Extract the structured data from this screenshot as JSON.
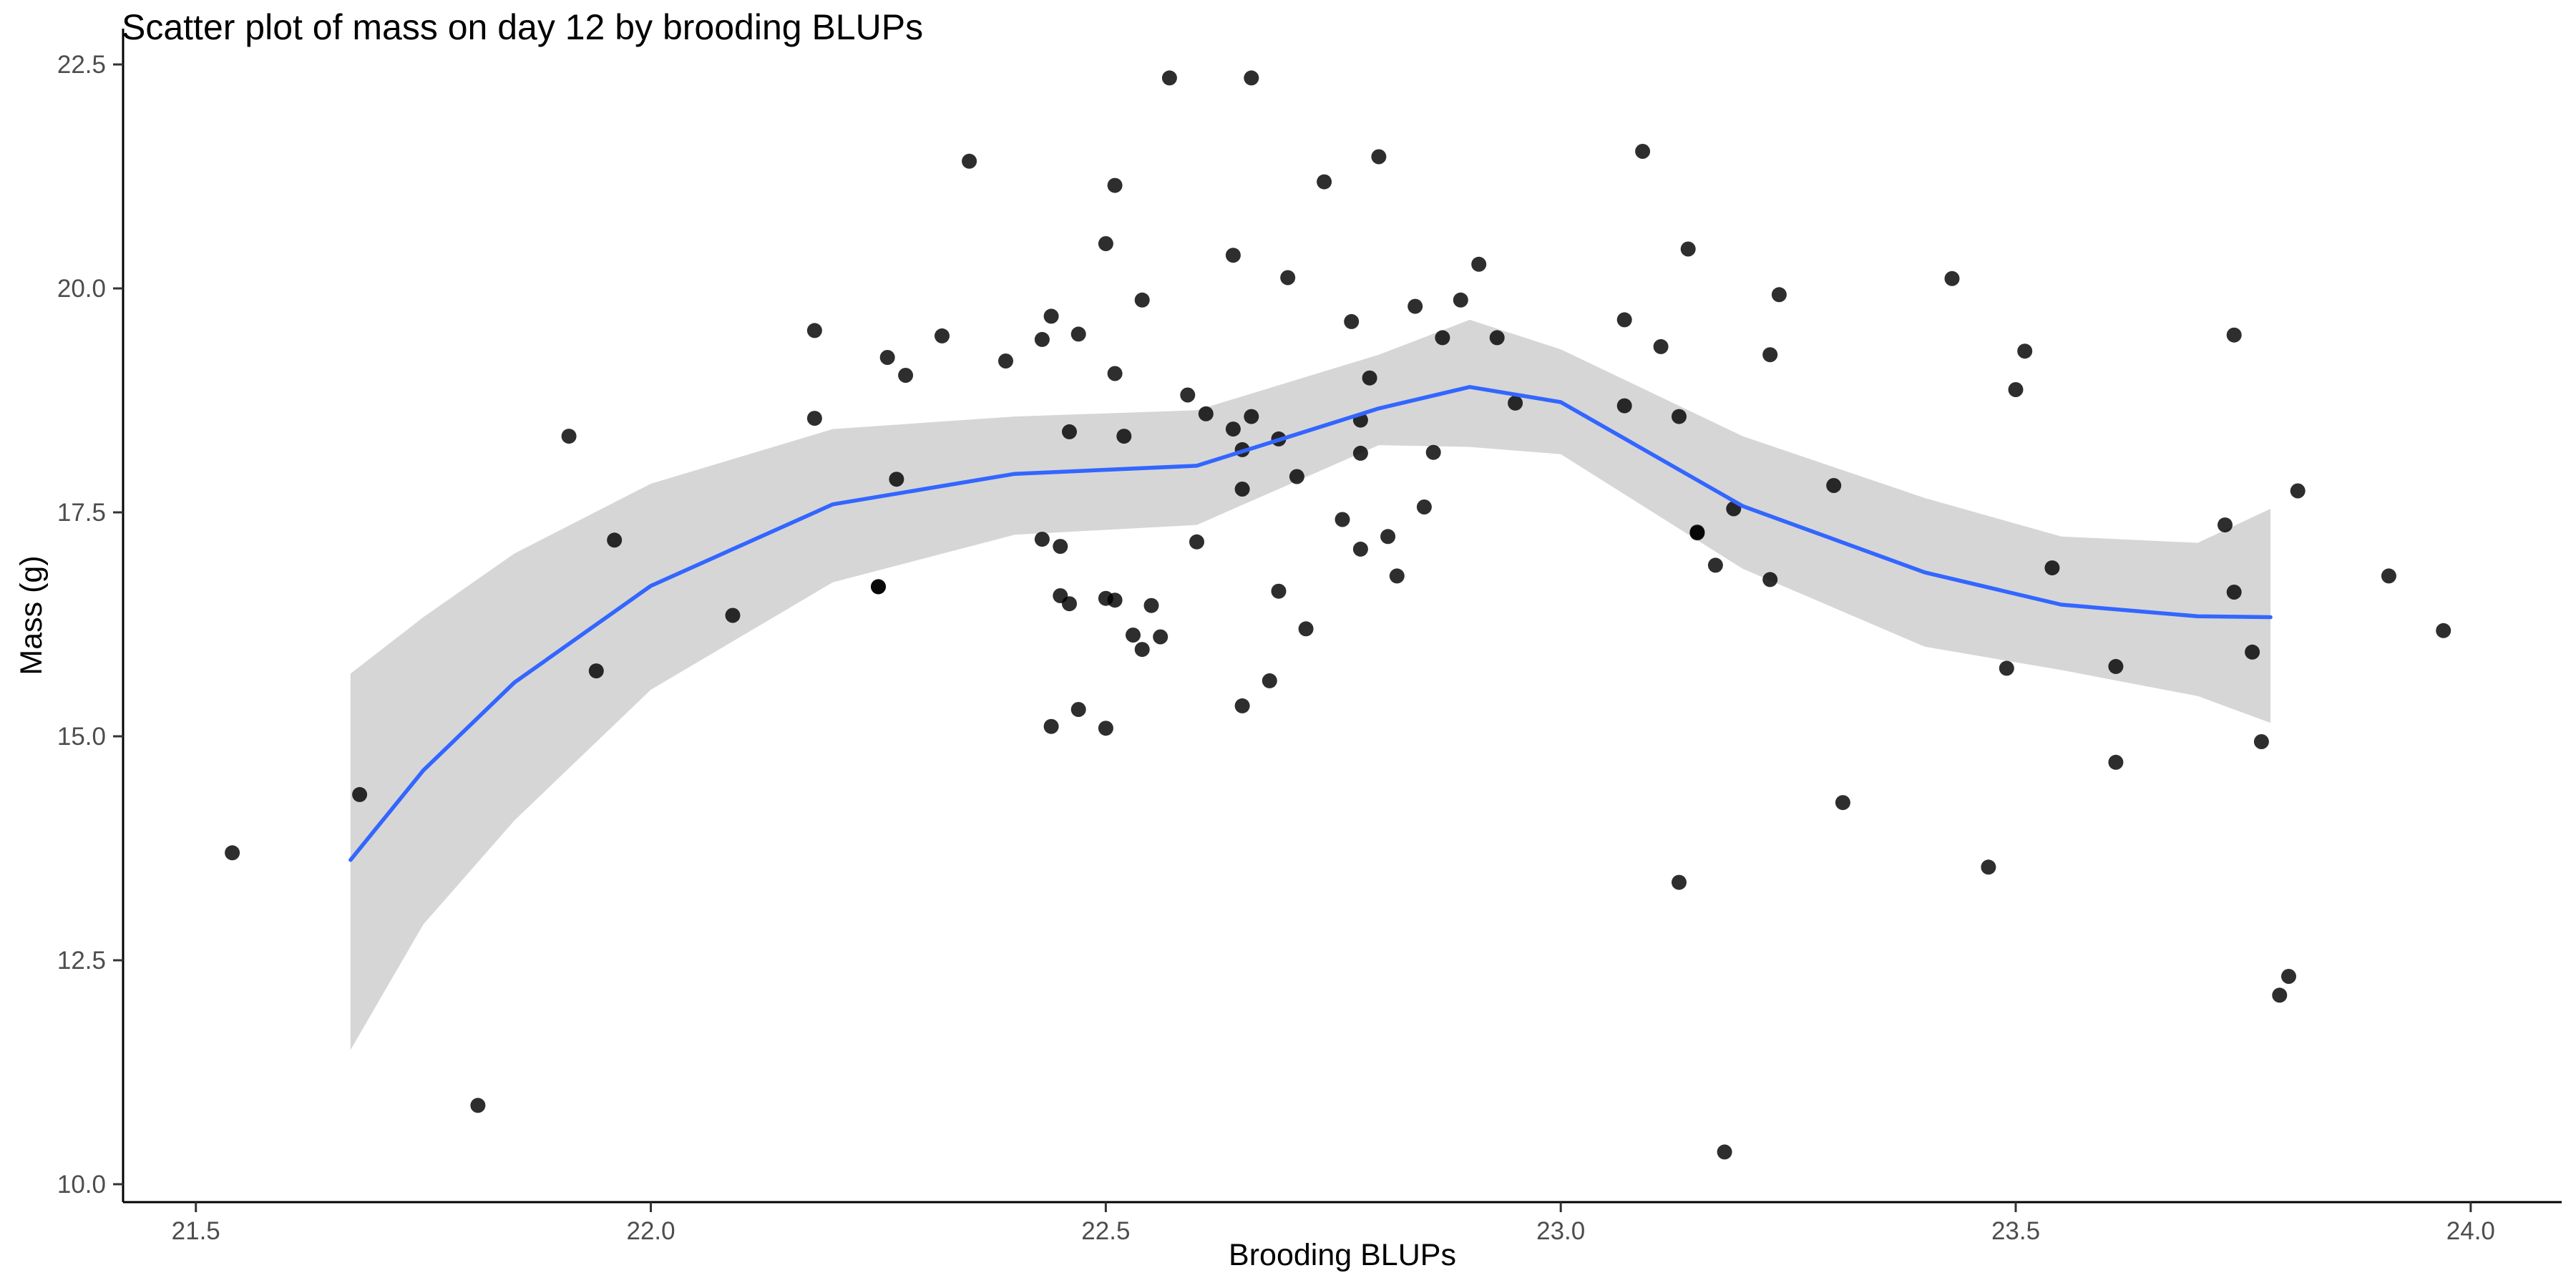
{
  "chart_data": {
    "type": "scatter",
    "title": "Scatter plot of mass on day 12 by brooding BLUPs",
    "xlabel": "Brooding BLUPs",
    "ylabel": "Mass (g)",
    "xlim": [
      21.42,
      24.1
    ],
    "ylim": [
      9.8,
      22.9
    ],
    "x_ticks": [
      21.5,
      22.0,
      22.5,
      23.0,
      23.5,
      24.0
    ],
    "x_tick_labels": [
      "21.5",
      "22.0",
      "22.5",
      "23.0",
      "23.5",
      "24.0"
    ],
    "y_ticks": [
      10.0,
      12.5,
      15.0,
      17.5,
      20.0,
      22.5
    ],
    "y_tick_labels": [
      "10.0",
      "12.5",
      "15.0",
      "17.5",
      "20.0",
      "22.5"
    ],
    "grid": false,
    "legend": "none",
    "colors": {
      "points": "#000000",
      "smooth_line": "#3366FF",
      "confidence_band": "#999999"
    },
    "points": {
      "x": [
        21.54,
        21.68,
        21.81,
        21.91,
        21.94,
        21.96,
        22.09,
        22.18,
        22.18,
        22.25,
        22.26,
        22.27,
        22.28,
        22.32,
        22.35,
        22.39,
        22.43,
        22.43,
        22.44,
        22.44,
        22.45,
        22.45,
        22.46,
        22.46,
        22.47,
        22.47,
        22.5,
        22.5,
        22.5,
        22.51,
        22.51,
        22.51,
        22.52,
        22.53,
        22.54,
        22.54,
        22.55,
        22.56,
        22.57,
        22.59,
        22.6,
        22.61,
        22.64,
        22.64,
        22.65,
        22.65,
        22.65,
        22.66,
        22.66,
        22.68,
        22.69,
        22.69,
        22.7,
        22.71,
        22.72,
        22.74,
        22.76,
        22.77,
        22.78,
        22.78,
        22.78,
        22.79,
        22.8,
        22.81,
        22.82,
        22.84,
        22.85,
        22.86,
        22.87,
        22.89,
        22.91,
        22.93,
        22.95,
        23.07,
        23.07,
        23.09,
        23.11,
        23.13,
        23.13,
        23.14,
        23.15,
        23.15,
        23.17,
        23.18,
        23.19,
        23.23,
        23.23,
        23.24,
        23.3,
        23.31,
        23.43,
        23.47,
        23.49,
        23.5,
        23.51,
        23.54,
        23.61,
        23.61,
        23.73,
        23.74,
        23.74,
        23.76,
        23.77,
        23.79,
        23.8,
        23.81,
        23.91,
        23.97,
        22.25
      ],
      "y": [
        13.7,
        14.35,
        10.88,
        18.35,
        15.73,
        17.19,
        16.35,
        19.53,
        18.55,
        16.67,
        19.23,
        17.87,
        19.03,
        19.47,
        21.42,
        19.19,
        17.2,
        19.43,
        15.11,
        19.69,
        17.12,
        16.57,
        16.48,
        18.4,
        19.49,
        15.3,
        20.5,
        16.54,
        15.09,
        16.52,
        21.15,
        19.05,
        18.35,
        16.13,
        15.97,
        19.87,
        16.46,
        16.11,
        22.35,
        18.81,
        17.17,
        18.6,
        20.37,
        18.43,
        17.76,
        18.2,
        15.34,
        18.57,
        22.35,
        15.62,
        18.32,
        16.62,
        20.12,
        17.9,
        16.2,
        21.19,
        17.42,
        19.63,
        18.16,
        18.53,
        17.09,
        19.0,
        21.47,
        17.23,
        16.79,
        19.8,
        17.56,
        18.17,
        19.45,
        19.87,
        20.27,
        19.45,
        18.72,
        19.65,
        18.69,
        21.53,
        19.35,
        13.37,
        18.57,
        20.44,
        17.28,
        17.27,
        16.91,
        10.36,
        17.54,
        16.75,
        19.26,
        19.93,
        17.8,
        14.26,
        20.11,
        13.54,
        15.76,
        18.87,
        19.3,
        16.88,
        14.71,
        15.78,
        17.36,
        16.61,
        19.48,
        15.94,
        14.94,
        12.11,
        12.32,
        17.74,
        16.79,
        16.18,
        16.67
      ]
    },
    "smooth": {
      "x": [
        21.67,
        21.75,
        21.85,
        22.0,
        22.2,
        22.4,
        22.6,
        22.8,
        22.9,
        23.0,
        23.2,
        23.4,
        23.55,
        23.7,
        23.78
      ],
      "y": [
        13.62,
        14.62,
        15.6,
        16.68,
        17.59,
        17.93,
        18.02,
        18.66,
        18.9,
        18.73,
        17.57,
        16.83,
        16.47,
        16.34,
        16.33
      ],
      "lower": [
        11.5,
        12.9,
        14.06,
        15.52,
        16.72,
        17.25,
        17.36,
        18.25,
        18.23,
        18.15,
        16.87,
        16.0,
        15.74,
        15.45,
        15.15
      ],
      "upper": [
        15.7,
        16.33,
        17.04,
        17.82,
        18.43,
        18.57,
        18.64,
        19.26,
        19.65,
        19.32,
        18.35,
        17.66,
        17.23,
        17.16,
        17.54
      ]
    }
  }
}
